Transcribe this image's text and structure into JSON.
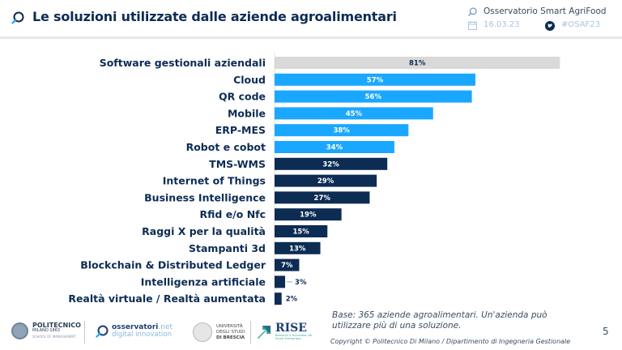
{
  "header": {
    "title": "Le soluzioni utilizzate dalle aziende agroalimentari",
    "title_icon": "search-bubble-icon",
    "observatory": "Osservatorio Smart AgriFood",
    "date": "16.03.23",
    "hashtag": "#OSAF23",
    "date_icon": "calendar-icon",
    "social_icon": "twitter-icon"
  },
  "chart_data": {
    "type": "bar",
    "orientation": "horizontal",
    "title": "Le soluzioni utilizzate dalle aziende agroalimentari",
    "xlabel": "",
    "ylabel": "",
    "xlim": [
      0,
      100
    ],
    "unit": "%",
    "grid": false,
    "categories": [
      "Software gestionali aziendali",
      "Cloud",
      "QR code",
      "Mobile",
      "ERP-MES",
      "Robot e cobot",
      "TMS-WMS",
      "Internet of Things",
      "Business Intelligence",
      "Rfid e/o Nfc",
      "Raggi X per la qualità",
      "Stampanti 3d",
      "Blockchain & Distributed Ledger",
      "Intelligenza artificiale",
      "Realtà virtuale / Realtà aumentata"
    ],
    "values": [
      81,
      57,
      56,
      45,
      38,
      34,
      32,
      29,
      27,
      19,
      15,
      13,
      7,
      3,
      2
    ],
    "value_labels": [
      "81%",
      "57%",
      "56%",
      "45%",
      "38%",
      "34%",
      "32%",
      "29%",
      "27%",
      "19%",
      "15%",
      "13%",
      "7%",
      "3%",
      "2%"
    ],
    "groups": [
      "highlight",
      "top",
      "top",
      "top",
      "top",
      "top",
      "other",
      "other",
      "other",
      "other",
      "other",
      "other",
      "other",
      "other",
      "other"
    ],
    "colors": {
      "highlight": "#d9d9d9",
      "top": "#1aa7ff",
      "other": "#0d2c54",
      "label_on_light": "#0d2c54",
      "label_on_dark": "#ffffff"
    }
  },
  "footer": {
    "note": "Base: 365 aziende agroalimentari. Un'azienda può utilizzare più di una soluzione.",
    "copyright": "Copyright © Politecnico Di Milano / Dipartimento di Ingegneria Gestionale",
    "page_number": "5",
    "logos": {
      "polimi": {
        "name": "POLITECNICO",
        "sub": "MILANO 1863",
        "school": "SCHOOL OF MANAGEMENT"
      },
      "osservatori": {
        "name": "osservatori",
        "suffix": ".net",
        "tagline": "digital innovation"
      },
      "unibs": {
        "line1": "UNIVERSITÀ",
        "line2": "DEGLI STUDI",
        "line3": "DI BRESCIA"
      },
      "rise": {
        "name": "RISE",
        "tagline": "Research & Innovation for Smart Enterprises"
      }
    }
  }
}
